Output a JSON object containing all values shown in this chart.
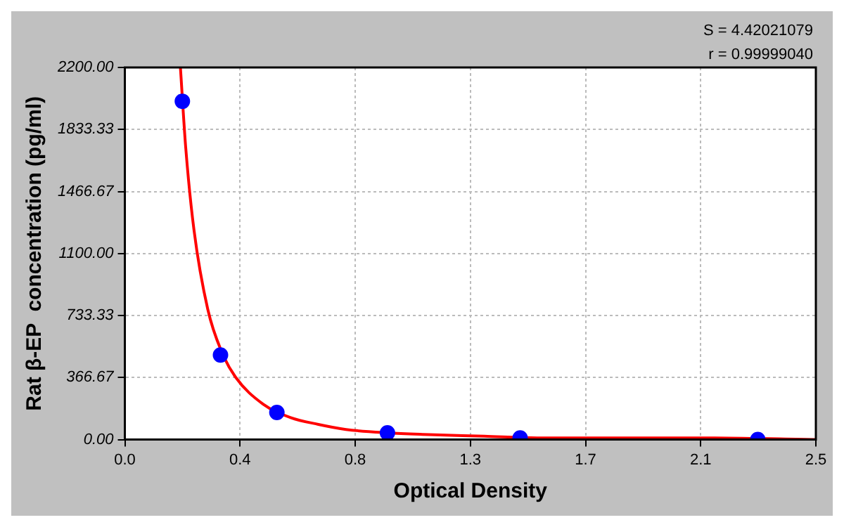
{
  "chart_data": {
    "type": "scatter",
    "xlabel": "Optical Density",
    "ylabel": "Rat β-EP  concentration (pg/ml)",
    "annotations": [
      "S = 4.42021079",
      "r = 0.99999040"
    ],
    "xlim": [
      0,
      2.5
    ],
    "xticks": [
      {
        "value": 0,
        "label": "0.0"
      },
      {
        "value": 0.41667,
        "label": "0.4"
      },
      {
        "value": 0.83333,
        "label": "0.8"
      },
      {
        "value": 1.25,
        "label": "1.3"
      },
      {
        "value": 1.66667,
        "label": "1.7"
      },
      {
        "value": 2.08333,
        "label": "2.1"
      },
      {
        "value": 2.5,
        "label": "2.5"
      }
    ],
    "ylim": [
      0,
      2200
    ],
    "yticks": [
      {
        "value": 0,
        "label": "0.00"
      },
      366.67,
      733.33,
      {
        "value": 1100,
        "label": "1100.00"
      },
      1466.67,
      1833.33,
      {
        "value": 2200,
        "label": "2200.00"
      }
    ],
    "grid": true,
    "marker": "circle",
    "series": [
      {
        "type": "scatter",
        "color": "#0000ff",
        "x": [
          0.208,
          0.346,
          0.55,
          0.95,
          1.43,
          2.29
        ],
        "values": [
          2000,
          500,
          160,
          40,
          10,
          0
        ]
      },
      {
        "type": "line",
        "marker": "none",
        "color": "#ff0000",
        "x": [
          0.201,
          0.22,
          0.25,
          0.3,
          0.35,
          0.4,
          0.5,
          0.6,
          0.7,
          0.8,
          0.95,
          1.1,
          1.3,
          1.5,
          1.8,
          2.1,
          2.5
        ],
        "values": [
          2200,
          1730,
          1240,
          770,
          520,
          370,
          210,
          130,
          90,
          60,
          40,
          30,
          20,
          10,
          10,
          10,
          0
        ]
      }
    ]
  }
}
